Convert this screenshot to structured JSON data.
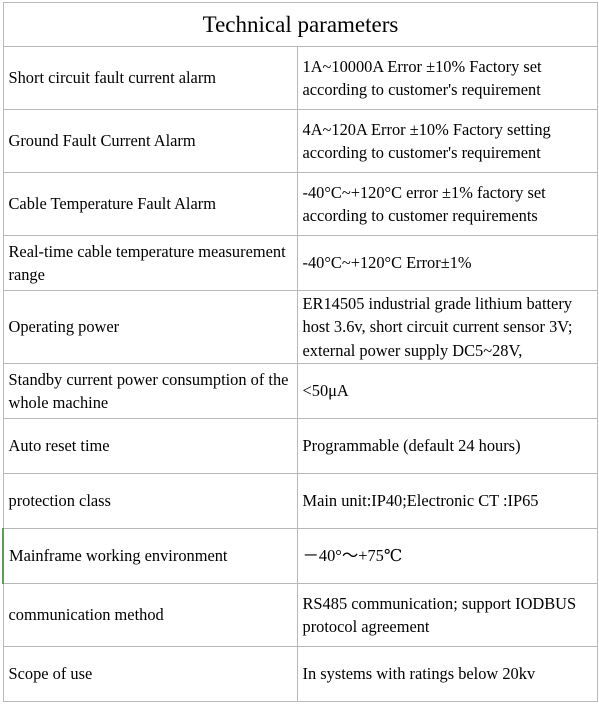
{
  "title": "Technical parameters",
  "rows": [
    {
      "param": "Short circuit fault current alarm",
      "value": "1A~10000A Error ±10% Factory set according to customer's requirement"
    },
    {
      "param": "Ground Fault Current Alarm",
      "value": "4A~120A Error ±10% Factory setting according to customer's requirement"
    },
    {
      "param": "Cable Temperature Fault Alarm",
      "value": "-40°C~+120°C error ±1% factory set according to customer requirements"
    },
    {
      "param": "Real-time cable temperature measurement range",
      "value": "-40°C~+120°C Error±1%"
    },
    {
      "param": "Operating power",
      "value": "ER14505 industrial grade lithium battery host 3.6v, short circuit current sensor 3V; external power supply DC5~28V,"
    },
    {
      "param": "Standby current power consumption of the whole machine",
      "value": "<50μA"
    },
    {
      "param": "Auto reset time",
      "value": "Programmable (default 24 hours)"
    },
    {
      "param": "protection class",
      "value": "Main unit:IP40;Electronic CT :IP65"
    },
    {
      "param": "Mainframe working environment",
      "value": "－40°～+75℃"
    },
    {
      "param": "communication method",
      "value": "RS485 communication; support IODBUS protocol agreement"
    },
    {
      "param": "Scope of use",
      "value": "In systems with ratings below 20kv"
    }
  ]
}
